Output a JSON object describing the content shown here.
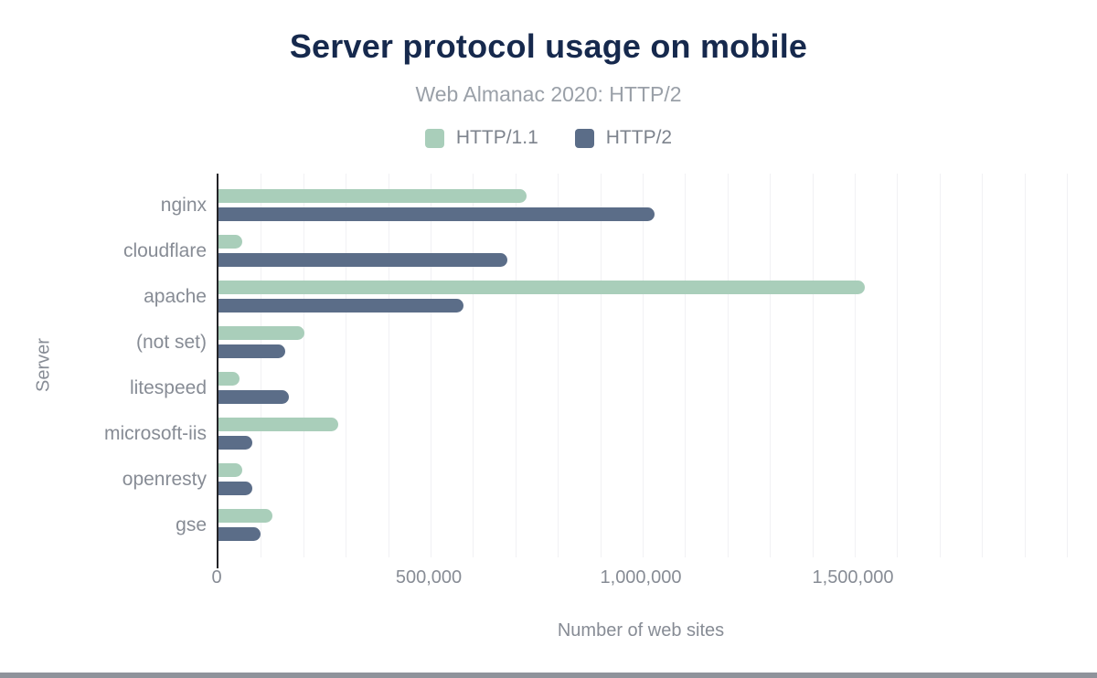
{
  "chart_data": {
    "type": "bar",
    "orientation": "horizontal",
    "title": "Server protocol usage on mobile",
    "subtitle": "Web Almanac 2020: HTTP/2",
    "xlabel": "Number of web sites",
    "ylabel": "Server",
    "xlim": [
      0,
      2000000
    ],
    "grid_interval": 100000,
    "grid_count": 20,
    "grid_on": true,
    "legend_position": "top-center",
    "x_ticks": [
      {
        "label": "0",
        "value": 0
      },
      {
        "label": "500,000",
        "value": 500000
      },
      {
        "label": "1,000,000",
        "value": 1000000
      },
      {
        "label": "1,500,000",
        "value": 1500000
      }
    ],
    "categories": [
      "nginx",
      "cloudflare",
      "apache",
      "(not set)",
      "litespeed",
      "microsoft-iis",
      "openresty",
      "gse"
    ],
    "series": [
      {
        "name": "HTTP/1.1",
        "color": "#a9ceba",
        "values": [
          727000,
          56000,
          1523000,
          203000,
          50000,
          283000,
          56000,
          127000
        ]
      },
      {
        "name": "HTTP/2",
        "color": "#5b6d88",
        "values": [
          1027000,
          680000,
          578000,
          158000,
          166000,
          80000,
          80000,
          99000
        ]
      }
    ]
  },
  "colors": {
    "title_navy": "#16294d",
    "subtitle_gray": "#9aa0a8",
    "text_gray": "#878c95",
    "grid": "#f1f1f4",
    "axis": "#232327",
    "footer_bar": "#8f939b",
    "series_http11": "#a9ceba",
    "series_http2": "#5b6d88"
  }
}
